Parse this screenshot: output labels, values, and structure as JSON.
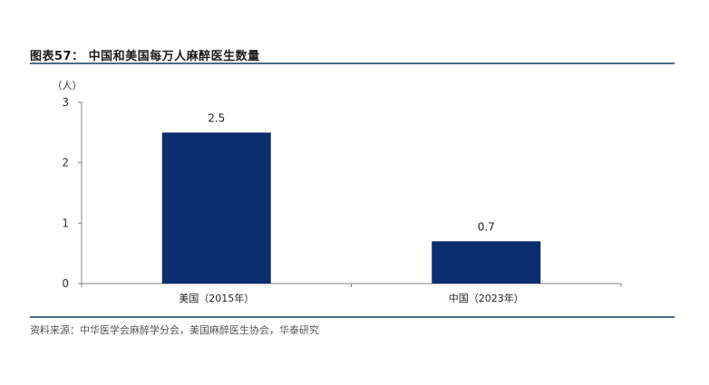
{
  "header": {
    "title": "图表57：  中国和美国每万人麻醉医生数量"
  },
  "footer": {
    "source": "资料来源：中华医学会麻醉学分会，美国麻醉医生协会，华泰研究"
  },
  "colors": {
    "bar": "#0b2e6e",
    "rule": "#4a6a8a",
    "axis": "#808080"
  },
  "chart_data": {
    "type": "bar",
    "categories": [
      "美国（2015年）",
      "中国（2023年）"
    ],
    "values": [
      2.5,
      0.7
    ],
    "data_labels": [
      "2.5",
      "0.7"
    ],
    "title": "",
    "xlabel": "",
    "ylabel": "（人）",
    "ylim": [
      0,
      3
    ],
    "yticks": [
      "0",
      "1",
      "2",
      "3"
    ],
    "grid": false,
    "legend": "none"
  }
}
